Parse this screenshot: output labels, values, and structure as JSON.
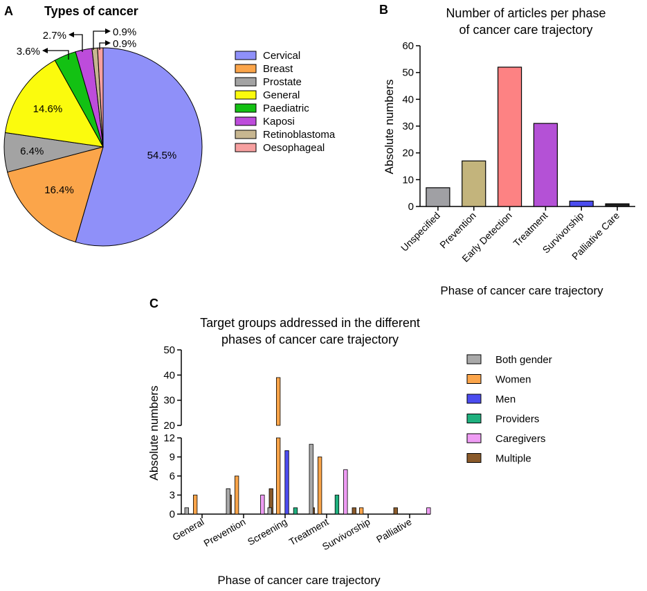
{
  "chart_data": [
    {
      "panel": "A",
      "type": "pie",
      "title": "Types of cancer",
      "categories": [
        "Cervical",
        "Breast",
        "Prostate",
        "General",
        "Paediatric",
        "Kaposi",
        "Retinoblastoma",
        "Oesophageal"
      ],
      "values": [
        54.5,
        16.4,
        6.4,
        14.6,
        3.6,
        2.7,
        0.9,
        0.9
      ],
      "labels": [
        "54.5%",
        "16.4%",
        "6.4%",
        "14.6%",
        "3.6%",
        "2.7%",
        "0.9%",
        "0.9%"
      ],
      "colors": [
        "#8f90f9",
        "#fba54a",
        "#a3a3a3",
        "#fbfb0d",
        "#13c113",
        "#bd4cdb",
        "#c7b690",
        "#f7a0a0"
      ],
      "legend": "right"
    },
    {
      "panel": "B",
      "type": "bar",
      "title": "Number of articles per phase of cancer care trajectory",
      "title_lines": [
        "Number of articles per phase",
        "of cancer care trajectory"
      ],
      "categories": [
        "Unspecified",
        "Prevention",
        "Early Detection",
        "Treatment",
        "Survivorship",
        "Palliative Care"
      ],
      "values": [
        7,
        17,
        52,
        31,
        2,
        1
      ],
      "colors": [
        "#a0a0a4",
        "#c3b47c",
        "#fd8283",
        "#b451d6",
        "#4b4cef",
        "#222222"
      ],
      "xlabel": "Phase of cancer care trajectory",
      "ylabel": "Absolute numbers",
      "ylim": [
        0,
        60
      ],
      "yticks": [
        0,
        10,
        20,
        30,
        40,
        50,
        60
      ]
    },
    {
      "panel": "C",
      "type": "bar",
      "title": "Target groups addressed in the different phases of cancer care trajectory",
      "title_lines": [
        "Target groups addressed in the different",
        "phases of cancer care trajectory"
      ],
      "categories": [
        "General",
        "Prevention",
        "Screening",
        "Treatment",
        "Survivorship",
        "Palliative"
      ],
      "series": [
        {
          "name": "Both gender",
          "color": "#a9a9a9",
          "values": [
            1,
            4,
            1,
            11,
            0,
            0
          ]
        },
        {
          "name": "Women",
          "color": "#fba54a",
          "values": [
            3,
            6,
            39,
            9,
            1,
            0
          ]
        },
        {
          "name": "Men",
          "color": "#4b4cef",
          "values": [
            0,
            0,
            10,
            0,
            0,
            0
          ]
        },
        {
          "name": "Providers",
          "color": "#1fb07e",
          "values": [
            0,
            0,
            1,
            3,
            0,
            0
          ]
        },
        {
          "name": "Caregivers",
          "color": "#ef9cf4",
          "values": [
            0,
            3,
            0,
            7,
            0,
            1
          ]
        },
        {
          "name": "Multiple",
          "color": "#8a5a2a",
          "values": [
            3,
            4,
            1,
            1,
            1,
            0
          ]
        }
      ],
      "xlabel": "Phase of cancer care trajectory",
      "ylabel": "Absolute numbers",
      "ylim": [
        0,
        50
      ],
      "axis_break": [
        12,
        20
      ],
      "yticks_lower": [
        0,
        3,
        6,
        9,
        12
      ],
      "yticks_upper": [
        20,
        30,
        40,
        50
      ],
      "legend": "right"
    }
  ]
}
